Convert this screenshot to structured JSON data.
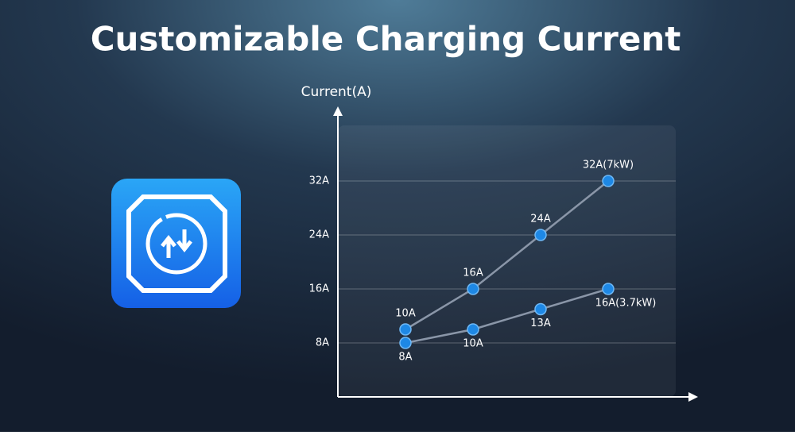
{
  "chart_data": {
    "type": "line",
    "title": "Customizable Charging Current",
    "y_label": "Current(A)",
    "categories": [
      null,
      null,
      null,
      null
    ],
    "series": [
      {
        "color": "#1e88e5",
        "values": [
          10,
          16,
          24,
          32
        ],
        "value_labels": [
          "10A",
          "16A",
          "24A",
          "32A(7kW)"
        ]
      },
      {
        "color": "#1e88e5",
        "values": [
          8,
          10,
          13,
          16
        ],
        "value_labels": [
          "8A",
          "10A",
          "13A",
          "16A(3.7kW)"
        ]
      }
    ],
    "line_color": "#8a96a8",
    "ylim": [
      0,
      42
    ],
    "yticks": [
      {
        "value": 8,
        "label": "8A"
      },
      {
        "value": 16,
        "label": "16A"
      },
      {
        "value": 24,
        "label": "24A"
      },
      {
        "value": 32,
        "label": "32A"
      }
    ],
    "grid": true
  }
}
